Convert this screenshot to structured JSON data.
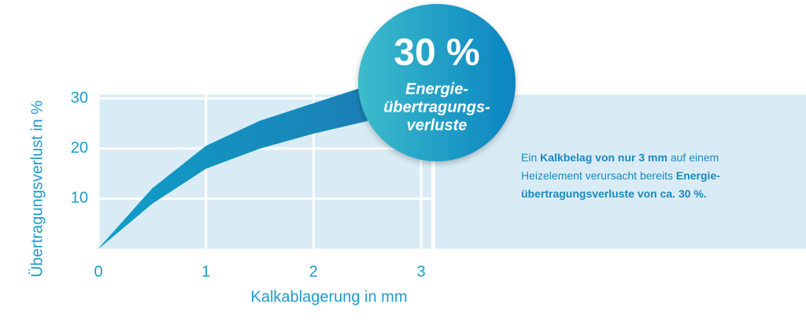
{
  "chart_data": {
    "type": "band",
    "x_label": "Kalkablagerung in mm",
    "y_label": "Übertragungsverlust in %",
    "x": [
      0,
      0.5,
      1,
      1.5,
      2,
      2.5
    ],
    "series": [
      {
        "color": "#1a9dc6",
        "values": [
          0,
          12,
          20.5,
          25.5,
          29,
          32.5
        ]
      },
      {
        "color": "#1a9dc6",
        "values": [
          0,
          9,
          16,
          20,
          23,
          25.5
        ]
      }
    ],
    "xlim": [
      0,
      3
    ],
    "ylim": [
      0,
      30
    ],
    "xticks": [
      0,
      1,
      2,
      3
    ],
    "yticks": [
      10,
      20,
      30
    ],
    "grid": true,
    "callout_title": "30 %",
    "callout_text": [
      "Energie-",
      "übertragungs-",
      "verluste"
    ],
    "note": [
      [
        {
          "text": "Ein ",
          "bold": false
        },
        {
          "text": "Kalkbelag von nur 3 mm",
          "bold": true
        },
        {
          "text": " auf einem",
          "bold": false
        }
      ],
      [
        {
          "text": "Heizelement verursacht bereits ",
          "bold": false
        },
        {
          "text": "Energie-",
          "bold": true
        }
      ],
      [
        {
          "text": "übertragungsverluste von ca. 30 %.",
          "bold": true
        }
      ]
    ]
  }
}
